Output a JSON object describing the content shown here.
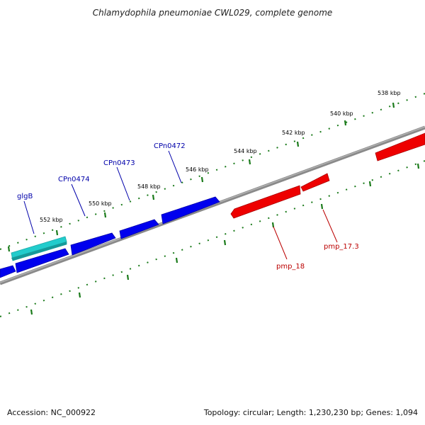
{
  "title": "Chlamydophila pneumoniae CWL029, complete genome",
  "footer": {
    "accession": "Accession: NC_000922",
    "summary": "Topology: circular; Length: 1,230,230 bp; Genes: 1,094"
  },
  "colors": {
    "backbone": "#888888",
    "tick": "#1a7a1a",
    "gene_forward": "#0000ee",
    "gene_reverse": "#ee0000",
    "gene_highlight": "#22cccc",
    "label_forward": "#0000aa",
    "label_reverse": "#bb0000"
  },
  "ticks": [
    {
      "label": "538 kbp"
    },
    {
      "label": "540 kbp"
    },
    {
      "label": "542 kbp"
    },
    {
      "label": "544 kbp"
    },
    {
      "label": "546 kbp"
    },
    {
      "label": "548 kbp"
    },
    {
      "label": "550 kbp"
    },
    {
      "label": "552 kbp"
    }
  ],
  "genes": [
    {
      "name": "glgB",
      "strand": "forward",
      "highlight": true
    },
    {
      "name": "CPn0474",
      "strand": "forward"
    },
    {
      "name": "CPn0473",
      "strand": "forward"
    },
    {
      "name": "CPn0472",
      "strand": "forward"
    },
    {
      "name": "pmp_18",
      "strand": "reverse"
    },
    {
      "name": "pmp_17.3",
      "strand": "reverse"
    }
  ]
}
